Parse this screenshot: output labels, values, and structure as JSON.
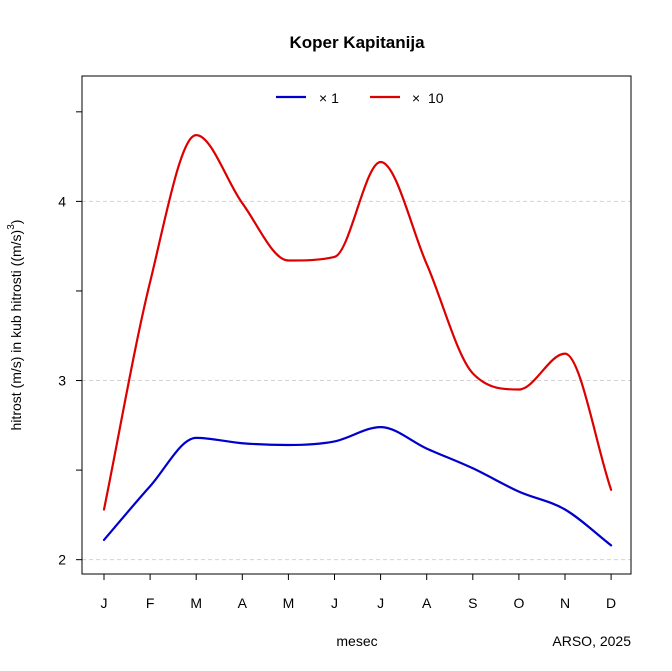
{
  "chart_data": {
    "type": "line",
    "title": "Koper Kapitanija",
    "xlabel": "mesec",
    "ylabel": "hitrost (m/s) in kub hitrosti ((m/s)",
    "ylabel_sup": "3",
    "ylabel_end": ")",
    "credit": "ARSO, 2025",
    "categories": [
      "J",
      "F",
      "M",
      "A",
      "M",
      "J",
      "J",
      "A",
      "S",
      "O",
      "N",
      "D"
    ],
    "ylim": [
      1.92,
      4.7
    ],
    "yticks": [
      2,
      3,
      4
    ],
    "grid": "horizontal dashed at y ticks",
    "legend_position": "top-center",
    "series": [
      {
        "name": "× 1",
        "color": "#0000cc",
        "values": [
          2.11,
          2.41,
          2.68,
          2.65,
          2.64,
          2.66,
          2.74,
          2.62,
          2.51,
          2.38,
          2.28,
          2.08
        ]
      },
      {
        "name": "×  10",
        "color": "#dd0000",
        "values": [
          2.28,
          3.55,
          4.37,
          3.99,
          3.67,
          3.69,
          4.22,
          3.65,
          3.04,
          2.95,
          3.15,
          2.39
        ]
      }
    ]
  }
}
